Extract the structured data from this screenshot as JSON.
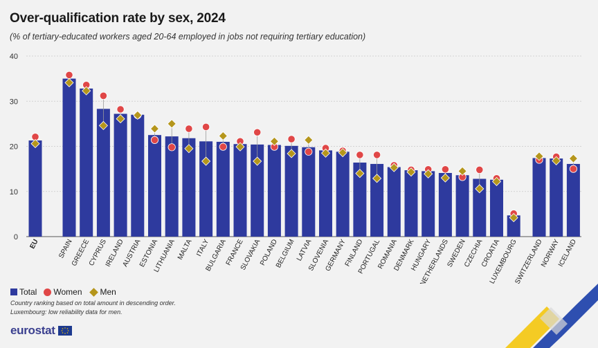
{
  "title": "Over-qualification rate by sex, 2024",
  "subtitle": "(% of tertiary-educated workers aged 20-64 employed in jobs not requiring tertiary education)",
  "legend": {
    "total": "Total",
    "women": "Women",
    "men": "Men"
  },
  "notes": [
    "Country ranking based on total amount in descending order.",
    "Luxembourg: low reliability data for men."
  ],
  "source": "eurostat",
  "colors": {
    "total": "#2e3a9e",
    "women": "#e04747",
    "men": "#b5961c"
  },
  "chart_data": {
    "type": "bar",
    "title": "Over-qualification rate by sex, 2024",
    "subtitle": "(% of tertiary-educated workers aged 20-64 employed in jobs not requiring tertiary education)",
    "xlabel": "",
    "ylabel": "",
    "ylim": [
      0,
      40
    ],
    "yticks": [
      0,
      10,
      20,
      30,
      40
    ],
    "grid": true,
    "legend_position": "bottom-left",
    "categories": [
      "EU",
      "SPAIN",
      "GREECE",
      "CYPRUS",
      "IRELAND",
      "AUSTRIA",
      "ESTONIA",
      "LITHUANIA",
      "MALTA",
      "ITALY",
      "BULGARIA",
      "FRANCE",
      "SLOVAKIA",
      "POLAND",
      "BELGIUM",
      "LATVIA",
      "SLOVENIA",
      "GERMANY",
      "FINLAND",
      "PORTUGAL",
      "ROMANIA",
      "DENMARK",
      "HUNGARY",
      "NETHERLANDS",
      "SWEDEN",
      "CZECHIA",
      "CROATIA",
      "LUXEMBOURG",
      "SWITZERLAND",
      "NORWAY",
      "ICELAND"
    ],
    "series": [
      {
        "name": "Total",
        "kind": "bar",
        "values": [
          21.3,
          35.0,
          32.8,
          28.3,
          27.2,
          27.0,
          22.5,
          22.2,
          21.8,
          21.1,
          21.0,
          20.5,
          20.4,
          20.3,
          20.1,
          19.8,
          19.1,
          18.8,
          16.4,
          16.1,
          15.4,
          14.7,
          14.5,
          14.1,
          13.6,
          12.8,
          12.6,
          4.7,
          17.4,
          17.3,
          16.1
        ]
      },
      {
        "name": "Women",
        "kind": "point",
        "values": [
          22.1,
          35.8,
          33.6,
          31.2,
          28.2,
          26.9,
          21.4,
          19.8,
          23.9,
          24.3,
          19.9,
          21.1,
          23.1,
          19.9,
          21.6,
          18.8,
          19.6,
          19.0,
          18.1,
          18.1,
          15.8,
          14.8,
          14.9,
          14.9,
          13.2,
          14.8,
          12.9,
          5.1,
          17.0,
          17.7,
          15.0
        ]
      },
      {
        "name": "Men",
        "kind": "point",
        "values": [
          20.6,
          34.1,
          32.3,
          24.6,
          26.1,
          26.9,
          23.9,
          25.0,
          19.5,
          16.7,
          22.3,
          19.9,
          16.7,
          21.1,
          18.4,
          21.4,
          18.5,
          18.6,
          14.0,
          12.9,
          15.3,
          14.3,
          13.9,
          13.0,
          14.5,
          10.6,
          12.2,
          4.2,
          17.8,
          16.8,
          17.3
        ]
      }
    ]
  }
}
